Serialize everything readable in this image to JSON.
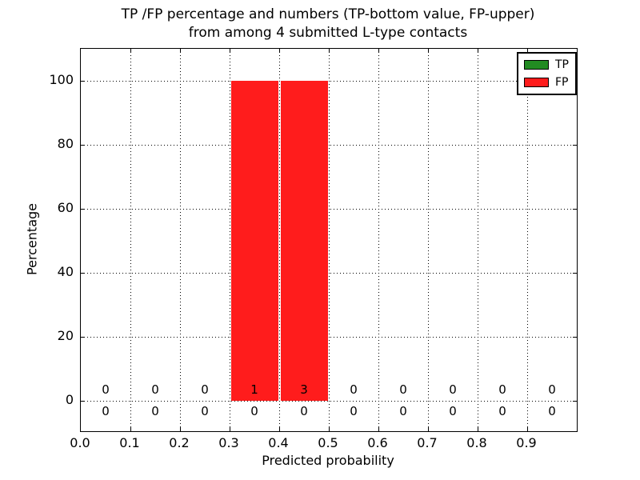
{
  "figure": {
    "title_line1": "TP /FP percentage and numbers (TP-bottom value, FP-upper)",
    "title_line2": "from among 4 submitted L-type contacts"
  },
  "chart_data": {
    "type": "bar",
    "stacked": true,
    "title": "TP /FP percentage and numbers (TP-bottom value, FP-upper) from among 4 submitted L-type contacts",
    "xlabel": "Predicted probability",
    "ylabel": "Percentage",
    "xlim": [
      0.0,
      1.0
    ],
    "ylim": [
      -10,
      110
    ],
    "grid": true,
    "grid_style": "dotted",
    "bin_width": 0.1,
    "bin_edges": [
      0.0,
      0.1,
      0.2,
      0.3,
      0.4,
      0.5,
      0.6,
      0.7,
      0.8,
      0.9,
      1.0
    ],
    "bin_centers": [
      0.05,
      0.15,
      0.25,
      0.35,
      0.45,
      0.55,
      0.65,
      0.75,
      0.85,
      0.95
    ],
    "xtick_labels": [
      "0.0",
      "0.1",
      "0.2",
      "0.3",
      "0.4",
      "0.5",
      "0.6",
      "0.7",
      "0.8",
      "0.9"
    ],
    "ytick_values": [
      0,
      20,
      40,
      60,
      80,
      100
    ],
    "series": [
      {
        "name": "TP",
        "color": "#228b22",
        "percent": [
          0,
          0,
          0,
          0,
          0,
          0,
          0,
          0,
          0,
          0
        ],
        "counts": [
          0,
          0,
          0,
          0,
          0,
          0,
          0,
          0,
          0,
          0
        ]
      },
      {
        "name": "FP",
        "color": "#ff1c1c",
        "percent": [
          0,
          0,
          0,
          100,
          100,
          0,
          0,
          0,
          0,
          0
        ],
        "counts": [
          0,
          0,
          0,
          1,
          3,
          0,
          0,
          0,
          0,
          0
        ]
      }
    ],
    "count_rows": {
      "fp_upper": [
        "0",
        "0",
        "0",
        "1",
        "3",
        "0",
        "0",
        "0",
        "0",
        "0"
      ],
      "tp_bottom": [
        "0",
        "0",
        "0",
        "0",
        "0",
        "0",
        "0",
        "0",
        "0",
        "0"
      ]
    },
    "legend": {
      "position": "upper right",
      "entries": [
        {
          "label": "TP",
          "color": "#228b22"
        },
        {
          "label": "FP",
          "color": "#ff1c1c"
        }
      ]
    }
  }
}
